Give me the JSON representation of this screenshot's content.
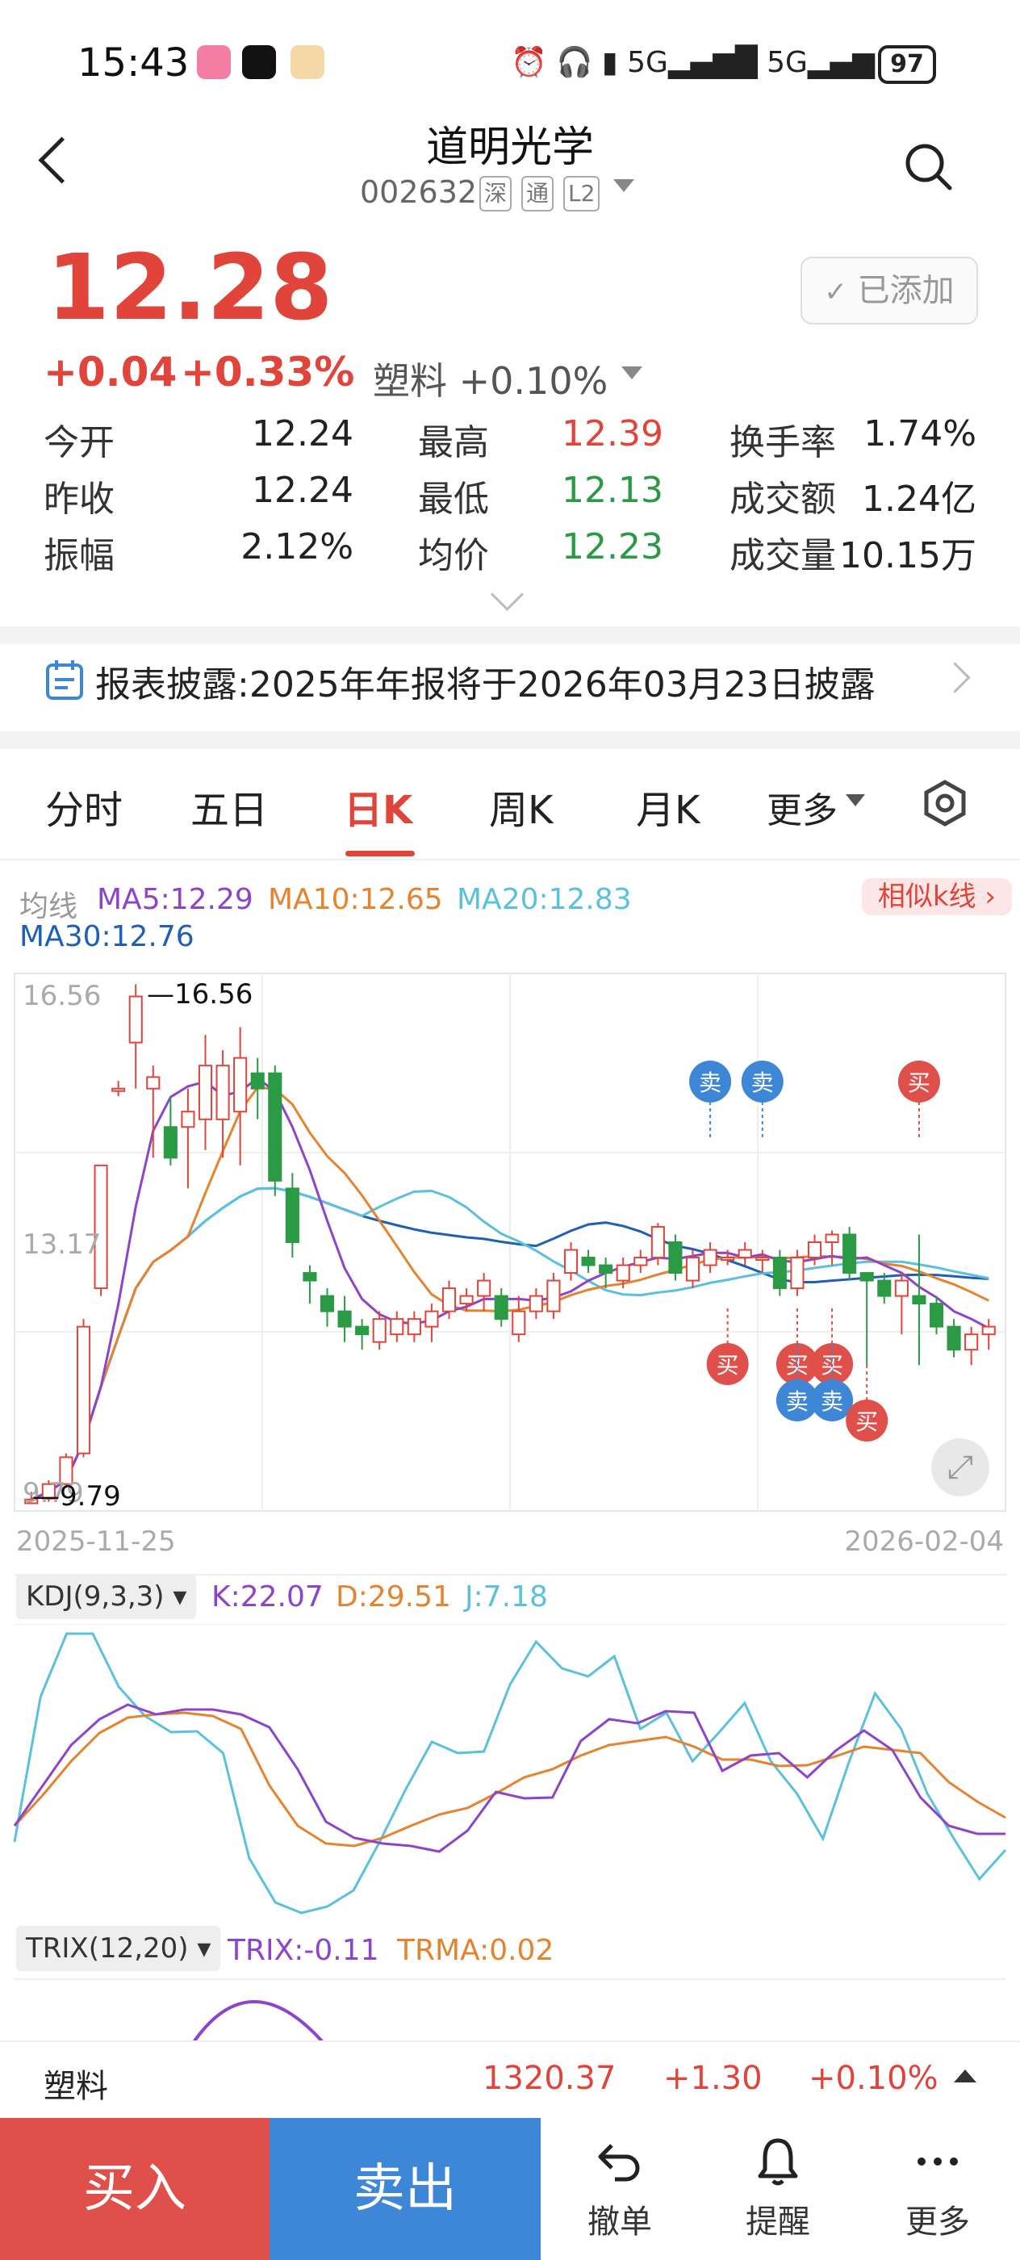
{
  "status": {
    "time": "15:43",
    "battery": "97"
  },
  "header": {
    "title": "道明光学",
    "code": "002632",
    "tags": [
      "深",
      "通",
      "L2"
    ]
  },
  "quote": {
    "price": "12.28",
    "change": "+0.04",
    "change_pct": "+0.33%",
    "sector": "塑料 +0.10%",
    "added_label": "已添加",
    "stats": [
      {
        "label": "今开",
        "value": "12.24",
        "color": "normal"
      },
      {
        "label": "最高",
        "value": "12.39",
        "color": "red"
      },
      {
        "label": "换手率",
        "value": "1.74%",
        "color": "normal"
      },
      {
        "label": "昨收",
        "value": "12.24",
        "color": "normal"
      },
      {
        "label": "最低",
        "value": "12.13",
        "color": "green"
      },
      {
        "label": "成交额",
        "value": "1.24亿",
        "color": "normal"
      },
      {
        "label": "振幅",
        "value": "2.12%",
        "color": "normal"
      },
      {
        "label": "均价",
        "value": "12.23",
        "color": "green"
      },
      {
        "label": "成交量",
        "value": "10.15万",
        "color": "normal"
      }
    ]
  },
  "disclosure": {
    "text": "报表披露:2025年年报将于2026年03月23日披露"
  },
  "tabs": [
    "分时",
    "五日",
    "日K",
    "周K",
    "月K",
    "更多"
  ],
  "active_tab": "日K",
  "ma_legend": {
    "label": "均线",
    "ma5": "MA5:12.29",
    "ma10": "MA10:12.65",
    "ma20": "MA20:12.83",
    "ma30": "MA30:12.76",
    "similar": "相似k线 ›"
  },
  "chart_data": {
    "type": "candlestick",
    "y_ticks": [
      "16.56",
      "13.17",
      "9.79"
    ],
    "max_label": "16.56",
    "min_label": "9.79",
    "x_start": "2025-11-25",
    "x_end": "2026-02-04",
    "signals": {
      "buy": "买",
      "sell": "卖"
    },
    "candles": [
      [
        9.8,
        9.85,
        9.79,
        9.95
      ],
      [
        9.86,
        10.05,
        9.82,
        10.1
      ],
      [
        10.05,
        10.4,
        10.0,
        10.45
      ],
      [
        10.45,
        12.1,
        10.4,
        12.2
      ],
      [
        12.6,
        14.2,
        12.5,
        14.2
      ],
      [
        15.2,
        15.2,
        15.1,
        15.3
      ],
      [
        15.8,
        16.4,
        15.2,
        16.56
      ],
      [
        15.2,
        15.35,
        14.3,
        15.5
      ],
      [
        14.7,
        14.3,
        14.2,
        15.1
      ],
      [
        14.7,
        14.9,
        13.9,
        15.2
      ],
      [
        14.8,
        15.5,
        14.4,
        15.9
      ],
      [
        14.8,
        15.5,
        14.3,
        15.7
      ],
      [
        14.9,
        15.6,
        14.2,
        16.0
      ],
      [
        15.4,
        15.2,
        14.8,
        15.6
      ],
      [
        15.4,
        14.0,
        13.8,
        15.5
      ],
      [
        13.9,
        13.2,
        13.0,
        14.1
      ],
      [
        12.8,
        12.7,
        12.4,
        12.9
      ],
      [
        12.5,
        12.3,
        12.1,
        12.6
      ],
      [
        12.3,
        12.1,
        11.9,
        12.5
      ],
      [
        12.1,
        12.0,
        11.8,
        12.2
      ],
      [
        11.9,
        12.2,
        11.8,
        12.3
      ],
      [
        12.0,
        12.2,
        11.9,
        12.3
      ],
      [
        12.0,
        12.2,
        11.9,
        12.3
      ],
      [
        12.1,
        12.3,
        11.9,
        12.4
      ],
      [
        12.3,
        12.6,
        12.2,
        12.7
      ],
      [
        12.4,
        12.5,
        12.3,
        12.6
      ],
      [
        12.5,
        12.7,
        12.3,
        12.8
      ],
      [
        12.5,
        12.2,
        12.1,
        12.6
      ],
      [
        12.0,
        12.3,
        11.9,
        12.5
      ],
      [
        12.3,
        12.5,
        12.2,
        12.6
      ],
      [
        12.3,
        12.7,
        12.2,
        12.8
      ],
      [
        12.8,
        13.1,
        12.7,
        13.2
      ],
      [
        13.0,
        12.9,
        12.8,
        13.1
      ],
      [
        12.9,
        12.8,
        12.6,
        13.0
      ],
      [
        12.7,
        12.9,
        12.6,
        13.0
      ],
      [
        12.9,
        13.0,
        12.8,
        13.1
      ],
      [
        13.0,
        13.4,
        12.9,
        13.45
      ],
      [
        13.2,
        12.8,
        12.7,
        13.3
      ],
      [
        12.7,
        13.0,
        12.6,
        13.1
      ],
      [
        12.9,
        13.1,
        12.8,
        13.2
      ],
      [
        13.0,
        13.0,
        12.9,
        13.1
      ],
      [
        13.0,
        13.1,
        12.9,
        13.2
      ],
      [
        13.0,
        13.0,
        12.8,
        13.1
      ],
      [
        13.0,
        12.6,
        12.5,
        13.1
      ],
      [
        12.6,
        13.0,
        12.5,
        13.1
      ],
      [
        13.0,
        13.2,
        12.9,
        13.3
      ],
      [
        13.2,
        13.3,
        12.9,
        13.35
      ],
      [
        13.3,
        12.8,
        12.7,
        13.4
      ],
      [
        12.8,
        12.7,
        11.6,
        12.8
      ],
      [
        12.7,
        12.5,
        12.4,
        12.8
      ],
      [
        12.5,
        12.7,
        12.0,
        12.8
      ],
      [
        12.5,
        12.4,
        11.6,
        13.3
      ],
      [
        12.4,
        12.1,
        12.0,
        12.5
      ],
      [
        12.1,
        11.8,
        11.7,
        12.2
      ],
      [
        11.8,
        12.0,
        11.6,
        12.1
      ],
      [
        12.0,
        12.1,
        11.8,
        12.2
      ]
    ],
    "buy_sell": [
      {
        "i": 39,
        "type": "sell",
        "pos": "top"
      },
      {
        "i": 42,
        "type": "sell",
        "pos": "top"
      },
      {
        "i": 51,
        "type": "buy",
        "pos": "top"
      },
      {
        "i": 40,
        "type": "buy",
        "pos": "bottom"
      },
      {
        "i": 44,
        "type": "buy",
        "pos": "bottom"
      },
      {
        "i": 44,
        "type": "sell",
        "pos": "bottom2"
      },
      {
        "i": 46,
        "type": "buy",
        "pos": "bottom"
      },
      {
        "i": 46,
        "type": "sell",
        "pos": "bottom2"
      },
      {
        "i": 48,
        "type": "buy",
        "pos": "bottom3"
      }
    ]
  },
  "kdj": {
    "selector": "KDJ(9,3,3)",
    "k": "K:22.07",
    "d": "D:29.51",
    "j": "J:7.18"
  },
  "trix": {
    "selector": "TRIX(12,20)",
    "trix": "TRIX:-0.11",
    "trma": "TRMA:0.02"
  },
  "index_row": {
    "name": "塑料",
    "value": "1320.37",
    "change": "+1.30",
    "pct": "+0.10%"
  },
  "bottom": {
    "buy": "买入",
    "sell": "卖出",
    "cancel": "撤单",
    "alert": "提醒",
    "more": "更多"
  },
  "colors": {
    "red": "#e0443b",
    "green": "#2b9a45",
    "buy_btn": "#e0504a",
    "sell_btn": "#3e87d6"
  }
}
